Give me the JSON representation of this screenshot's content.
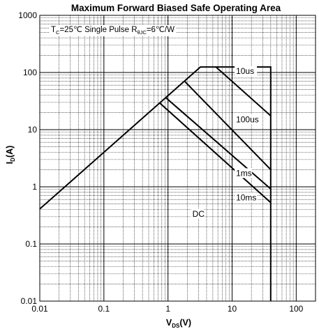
{
  "chart_data": {
    "type": "line",
    "title": "Maximum Forward Biased Safe Operating Area",
    "xlabel": {
      "main": "V",
      "sub": "DS",
      "suffix": "(V)"
    },
    "ylabel": {
      "main": "I",
      "sub": "D",
      "suffix": "(A)"
    },
    "x_scale": "log",
    "y_scale": "log",
    "xlim": [
      0.01,
      200
    ],
    "ylim": [
      0.01,
      1000
    ],
    "x_ticks": [
      0.01,
      0.1,
      1,
      10,
      100
    ],
    "x_tick_labels": [
      "0.01",
      "0.1",
      "1",
      "10",
      "100"
    ],
    "y_ticks": [
      0.01,
      0.1,
      1,
      10,
      100,
      1000
    ],
    "y_tick_labels": [
      "0.01",
      "0.1",
      "1",
      "10",
      "100",
      "1000"
    ],
    "grid": true,
    "annotation": {
      "parts": [
        "T",
        "C",
        "=25℃ Single Pulse R",
        "θJC",
        "=6℃/W"
      ]
    },
    "series": [
      {
        "name": "10us",
        "x": [
          0.01,
          3.2,
          40,
          40
        ],
        "y": [
          0.41,
          125,
          125,
          0.01
        ]
      },
      {
        "name": "100us",
        "x": [
          5.6,
          40
        ],
        "y": [
          125,
          17.5
        ]
      },
      {
        "name": "1ms",
        "x": [
          1.82,
          40
        ],
        "y": [
          70,
          2.0
        ]
      },
      {
        "name": "10ms",
        "x": [
          0.93,
          40
        ],
        "y": [
          36,
          0.92
        ]
      },
      {
        "name": "DC",
        "x": [
          0.75,
          40
        ],
        "y": [
          29,
          0.53
        ]
      }
    ],
    "series_labels": [
      {
        "text": "10us",
        "x": 11.5,
        "y": 95
      },
      {
        "text": "100us",
        "x": 11.5,
        "y": 13.5
      },
      {
        "text": "1ms",
        "x": 11.5,
        "y": 1.55
      },
      {
        "text": "10ms",
        "x": 11.5,
        "y": 0.58
      },
      {
        "text": "DC",
        "x": 2.4,
        "y": 0.3
      }
    ]
  }
}
